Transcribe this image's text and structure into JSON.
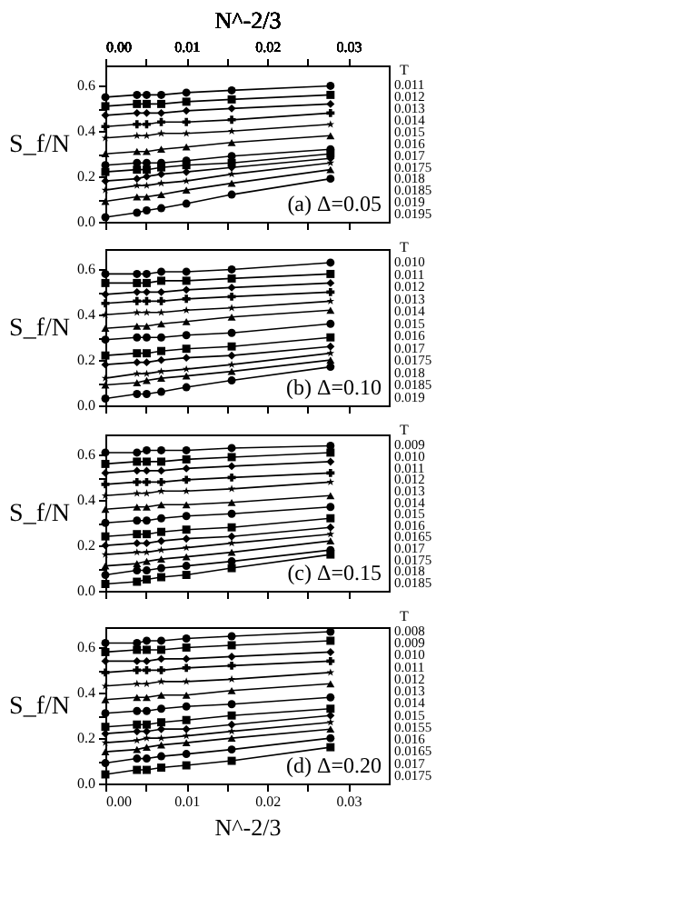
{
  "chart_data": [
    {
      "type": "line",
      "ylabel": "S_f/N",
      "legend_title": "T",
      "annotations": [
        "(a) Δ=0.05"
      ],
      "tick_labels": "y",
      "xlim": [
        0,
        0.035
      ],
      "xticks": [
        {
          "value": 0,
          "label": null
        },
        {
          "value": 0.005,
          "label": null
        },
        {
          "value": 0.01,
          "label": null
        },
        {
          "value": 0.015,
          "label": null
        },
        {
          "value": 0.02,
          "label": null
        },
        {
          "value": 0.025,
          "label": null
        },
        {
          "value": 0.03,
          "label": null
        }
      ],
      "x2label": "N^-2/3",
      "x2lim": [
        0,
        0.035
      ],
      "x2ticks": [
        {
          "value": 0,
          "label": "0.00"
        },
        {
          "value": 0.005,
          "label": null
        },
        0.01,
        {
          "value": 0.015,
          "label": null
        },
        0.02,
        {
          "value": 0.025,
          "label": null
        },
        0.03
      ],
      "ylim": [
        0,
        0.69
      ],
      "yticks": [
        {
          "value": 0,
          "label": "0.0"
        },
        {
          "value": 0.1,
          "label": null
        },
        0.2,
        {
          "value": 0.3,
          "label": null
        },
        0.4,
        {
          "value": 0.5,
          "label": null
        },
        0.6
      ],
      "x": [
        0,
        0.0039,
        0.0051,
        0.0069,
        0.01,
        0.0156,
        0.0278
      ],
      "series": [
        {
          "name": "0.011",
          "color": "#000000",
          "marker": "circle",
          "values": [
            0.55,
            0.56,
            0.56,
            0.56,
            0.57,
            0.58,
            0.6
          ]
        },
        {
          "name": "0.012",
          "color": "#000000",
          "marker": "square",
          "values": [
            0.51,
            0.52,
            0.52,
            0.52,
            0.53,
            0.54,
            0.56
          ]
        },
        {
          "name": "0.013",
          "color": "#000000",
          "marker": "diamond",
          "values": [
            0.47,
            0.48,
            0.48,
            0.48,
            0.49,
            0.5,
            0.52
          ]
        },
        {
          "name": "0.014",
          "color": "#000000",
          "marker": "cross",
          "values": [
            0.42,
            0.43,
            0.43,
            0.44,
            0.44,
            0.45,
            0.48
          ]
        },
        {
          "name": "0.015",
          "color": "#000000",
          "marker": "star",
          "values": [
            0.37,
            0.38,
            0.38,
            0.39,
            0.39,
            0.4,
            0.43
          ]
        },
        {
          "name": "0.016",
          "color": "#000000",
          "marker": "triangle",
          "values": [
            0.3,
            0.31,
            0.31,
            0.32,
            0.33,
            0.35,
            0.38
          ]
        },
        {
          "name": "0.017",
          "color": "#000000",
          "marker": "circle",
          "values": [
            0.25,
            0.26,
            0.26,
            0.26,
            0.27,
            0.29,
            0.32
          ]
        },
        {
          "name": "0.0175",
          "color": "#000000",
          "marker": "square",
          "values": [
            0.22,
            0.23,
            0.23,
            0.24,
            0.25,
            0.26,
            0.3
          ]
        },
        {
          "name": "0.018",
          "color": "#000000",
          "marker": "diamond",
          "values": [
            0.18,
            0.19,
            0.2,
            0.21,
            0.22,
            0.24,
            0.28
          ]
        },
        {
          "name": "0.0185",
          "color": "#000000",
          "marker": "star",
          "values": [
            0.14,
            0.16,
            0.16,
            0.17,
            0.18,
            0.21,
            0.26
          ]
        },
        {
          "name": "0.019",
          "color": "#000000",
          "marker": "triangle",
          "values": [
            0.09,
            0.11,
            0.11,
            0.12,
            0.14,
            0.17,
            0.23
          ]
        },
        {
          "name": "0.0195",
          "color": "#000000",
          "marker": "circle",
          "values": [
            0.02,
            0.04,
            0.05,
            0.06,
            0.08,
            0.12,
            0.19
          ]
        }
      ]
    },
    {
      "type": "line",
      "ylabel": "S_f/N",
      "legend_title": "T",
      "annotations": [
        "(b) Δ=0.10"
      ],
      "tick_labels": "y",
      "xlim": [
        0,
        0.035
      ],
      "xticks": [
        {
          "value": 0,
          "label": null
        },
        {
          "value": 0.005,
          "label": null
        },
        {
          "value": 0.01,
          "label": null
        },
        {
          "value": 0.015,
          "label": null
        },
        {
          "value": 0.02,
          "label": null
        },
        {
          "value": 0.025,
          "label": null
        },
        {
          "value": 0.03,
          "label": null
        }
      ],
      "ylim": [
        0,
        0.69
      ],
      "yticks": [
        {
          "value": 0,
          "label": "0.0"
        },
        {
          "value": 0.1,
          "label": null
        },
        0.2,
        {
          "value": 0.3,
          "label": null
        },
        0.4,
        {
          "value": 0.5,
          "label": null
        },
        0.6
      ],
      "x": [
        0,
        0.0039,
        0.0051,
        0.0069,
        0.01,
        0.0156,
        0.0278
      ],
      "series": [
        {
          "name": "0.010",
          "color": "#000000",
          "marker": "circle",
          "values": [
            0.58,
            0.58,
            0.58,
            0.59,
            0.59,
            0.6,
            0.63
          ]
        },
        {
          "name": "0.011",
          "color": "#000000",
          "marker": "square",
          "values": [
            0.54,
            0.54,
            0.54,
            0.55,
            0.55,
            0.56,
            0.58
          ]
        },
        {
          "name": "0.012",
          "color": "#000000",
          "marker": "diamond",
          "values": [
            0.49,
            0.5,
            0.5,
            0.5,
            0.51,
            0.52,
            0.54
          ]
        },
        {
          "name": "0.013",
          "color": "#000000",
          "marker": "cross",
          "values": [
            0.45,
            0.46,
            0.46,
            0.46,
            0.47,
            0.48,
            0.5
          ]
        },
        {
          "name": "0.014",
          "color": "#000000",
          "marker": "star",
          "values": [
            0.4,
            0.41,
            0.41,
            0.41,
            0.42,
            0.43,
            0.46
          ]
        },
        {
          "name": "0.015",
          "color": "#000000",
          "marker": "triangle",
          "values": [
            0.34,
            0.35,
            0.35,
            0.36,
            0.37,
            0.39,
            0.42
          ]
        },
        {
          "name": "0.016",
          "color": "#000000",
          "marker": "circle",
          "values": [
            0.29,
            0.3,
            0.3,
            0.3,
            0.31,
            0.32,
            0.36
          ]
        },
        {
          "name": "0.017",
          "color": "#000000",
          "marker": "square",
          "values": [
            0.22,
            0.23,
            0.23,
            0.24,
            0.25,
            0.26,
            0.3
          ]
        },
        {
          "name": "0.0175",
          "color": "#000000",
          "marker": "diamond",
          "values": [
            0.18,
            0.19,
            0.19,
            0.2,
            0.21,
            0.22,
            0.26
          ]
        },
        {
          "name": "0.018",
          "color": "#000000",
          "marker": "star",
          "values": [
            0.12,
            0.14,
            0.14,
            0.15,
            0.16,
            0.18,
            0.23
          ]
        },
        {
          "name": "0.0185",
          "color": "#000000",
          "marker": "triangle",
          "values": [
            0.09,
            0.1,
            0.11,
            0.12,
            0.13,
            0.15,
            0.2
          ]
        },
        {
          "name": "0.019",
          "color": "#000000",
          "marker": "circle",
          "values": [
            0.03,
            0.05,
            0.05,
            0.06,
            0.08,
            0.11,
            0.17
          ]
        }
      ]
    },
    {
      "type": "line",
      "ylabel": "S_f/N",
      "legend_title": "T",
      "annotations": [
        "(c) Δ=0.15"
      ],
      "tick_labels": "y",
      "xlim": [
        0,
        0.035
      ],
      "xticks": [
        {
          "value": 0,
          "label": null
        },
        {
          "value": 0.005,
          "label": null
        },
        {
          "value": 0.01,
          "label": null
        },
        {
          "value": 0.015,
          "label": null
        },
        {
          "value": 0.02,
          "label": null
        },
        {
          "value": 0.025,
          "label": null
        },
        {
          "value": 0.03,
          "label": null
        }
      ],
      "ylim": [
        0,
        0.69
      ],
      "yticks": [
        {
          "value": 0,
          "label": "0.0"
        },
        {
          "value": 0.1,
          "label": null
        },
        0.2,
        {
          "value": 0.3,
          "label": null
        },
        0.4,
        {
          "value": 0.5,
          "label": null
        },
        0.6
      ],
      "x": [
        0,
        0.0039,
        0.0051,
        0.0069,
        0.01,
        0.0156,
        0.0278
      ],
      "series": [
        {
          "name": "0.009",
          "color": "#000000",
          "marker": "circle",
          "values": [
            0.61,
            0.61,
            0.62,
            0.62,
            0.62,
            0.63,
            0.64
          ]
        },
        {
          "name": "0.010",
          "color": "#000000",
          "marker": "square",
          "values": [
            0.56,
            0.57,
            0.57,
            0.57,
            0.58,
            0.59,
            0.61
          ]
        },
        {
          "name": "0.011",
          "color": "#000000",
          "marker": "diamond",
          "values": [
            0.52,
            0.53,
            0.53,
            0.53,
            0.54,
            0.55,
            0.57
          ]
        },
        {
          "name": "0.012",
          "color": "#000000",
          "marker": "cross",
          "values": [
            0.47,
            0.48,
            0.48,
            0.48,
            0.49,
            0.5,
            0.52
          ]
        },
        {
          "name": "0.013",
          "color": "#000000",
          "marker": "star",
          "values": [
            0.42,
            0.43,
            0.43,
            0.44,
            0.44,
            0.45,
            0.48
          ]
        },
        {
          "name": "0.014",
          "color": "#000000",
          "marker": "triangle",
          "values": [
            0.36,
            0.37,
            0.37,
            0.38,
            0.38,
            0.39,
            0.42
          ]
        },
        {
          "name": "0.015",
          "color": "#000000",
          "marker": "circle",
          "values": [
            0.3,
            0.31,
            0.31,
            0.32,
            0.33,
            0.34,
            0.37
          ]
        },
        {
          "name": "0.016",
          "color": "#000000",
          "marker": "square",
          "values": [
            0.24,
            0.25,
            0.25,
            0.26,
            0.27,
            0.28,
            0.32
          ]
        },
        {
          "name": "0.0165",
          "color": "#000000",
          "marker": "diamond",
          "values": [
            0.2,
            0.21,
            0.21,
            0.22,
            0.23,
            0.24,
            0.28
          ]
        },
        {
          "name": "0.017",
          "color": "#000000",
          "marker": "star",
          "values": [
            0.16,
            0.17,
            0.17,
            0.18,
            0.19,
            0.21,
            0.25
          ]
        },
        {
          "name": "0.0175",
          "color": "#000000",
          "marker": "triangle",
          "values": [
            0.11,
            0.12,
            0.13,
            0.14,
            0.15,
            0.17,
            0.22
          ]
        },
        {
          "name": "0.018",
          "color": "#000000",
          "marker": "circle",
          "values": [
            0.07,
            0.09,
            0.09,
            0.1,
            0.11,
            0.13,
            0.18
          ]
        },
        {
          "name": "0.0185",
          "color": "#000000",
          "marker": "square",
          "values": [
            0.03,
            0.04,
            0.05,
            0.06,
            0.07,
            0.1,
            0.16
          ]
        }
      ]
    },
    {
      "type": "line",
      "ylabel": "S_f/N",
      "legend_title": "T",
      "annotations": [
        "(d) Δ=0.20"
      ],
      "xlabel": "N^-2/3",
      "xlim": [
        0,
        0.035
      ],
      "xticks": [
        {
          "value": 0,
          "label": "0.00"
        },
        {
          "value": 0.005,
          "label": null
        },
        0.01,
        {
          "value": 0.015,
          "label": null
        },
        0.02,
        {
          "value": 0.025,
          "label": null
        },
        0.03
      ],
      "ylim": [
        0,
        0.69
      ],
      "yticks": [
        {
          "value": 0,
          "label": "0.0"
        },
        {
          "value": 0.1,
          "label": null
        },
        0.2,
        {
          "value": 0.3,
          "label": null
        },
        0.4,
        {
          "value": 0.5,
          "label": null
        },
        0.6
      ],
      "x": [
        0,
        0.0039,
        0.0051,
        0.0069,
        0.01,
        0.0156,
        0.0278
      ],
      "series": [
        {
          "name": "0.008",
          "color": "#000000",
          "marker": "circle",
          "values": [
            0.62,
            0.62,
            0.63,
            0.63,
            0.64,
            0.65,
            0.67
          ]
        },
        {
          "name": "0.009",
          "color": "#000000",
          "marker": "square",
          "values": [
            0.58,
            0.59,
            0.59,
            0.59,
            0.6,
            0.61,
            0.63
          ]
        },
        {
          "name": "0.010",
          "color": "#000000",
          "marker": "diamond",
          "values": [
            0.54,
            0.54,
            0.54,
            0.55,
            0.55,
            0.56,
            0.58
          ]
        },
        {
          "name": "0.011",
          "color": "#000000",
          "marker": "cross",
          "values": [
            0.49,
            0.5,
            0.5,
            0.5,
            0.51,
            0.52,
            0.54
          ]
        },
        {
          "name": "0.012",
          "color": "#000000",
          "marker": "star",
          "values": [
            0.43,
            0.44,
            0.44,
            0.45,
            0.45,
            0.46,
            0.49
          ]
        },
        {
          "name": "0.013",
          "color": "#000000",
          "marker": "triangle",
          "values": [
            0.37,
            0.38,
            0.38,
            0.39,
            0.39,
            0.41,
            0.44
          ]
        },
        {
          "name": "0.014",
          "color": "#000000",
          "marker": "circle",
          "values": [
            0.31,
            0.32,
            0.32,
            0.33,
            0.34,
            0.35,
            0.38
          ]
        },
        {
          "name": "0.015",
          "color": "#000000",
          "marker": "square",
          "values": [
            0.25,
            0.26,
            0.26,
            0.27,
            0.28,
            0.3,
            0.33
          ]
        },
        {
          "name": "0.0155",
          "color": "#000000",
          "marker": "diamond",
          "values": [
            0.22,
            0.23,
            0.23,
            0.24,
            0.24,
            0.26,
            0.3
          ]
        },
        {
          "name": "0.016",
          "color": "#000000",
          "marker": "star",
          "values": [
            0.18,
            0.19,
            0.2,
            0.2,
            0.21,
            0.23,
            0.27
          ]
        },
        {
          "name": "0.0165",
          "color": "#000000",
          "marker": "triangle",
          "values": [
            0.14,
            0.15,
            0.16,
            0.17,
            0.18,
            0.2,
            0.24
          ]
        },
        {
          "name": "0.017",
          "color": "#000000",
          "marker": "circle",
          "values": [
            0.09,
            0.11,
            0.11,
            0.12,
            0.13,
            0.15,
            0.2
          ]
        },
        {
          "name": "0.0175",
          "color": "#000000",
          "marker": "square",
          "values": [
            0.04,
            0.06,
            0.06,
            0.07,
            0.08,
            0.1,
            0.16
          ]
        }
      ]
    }
  ]
}
